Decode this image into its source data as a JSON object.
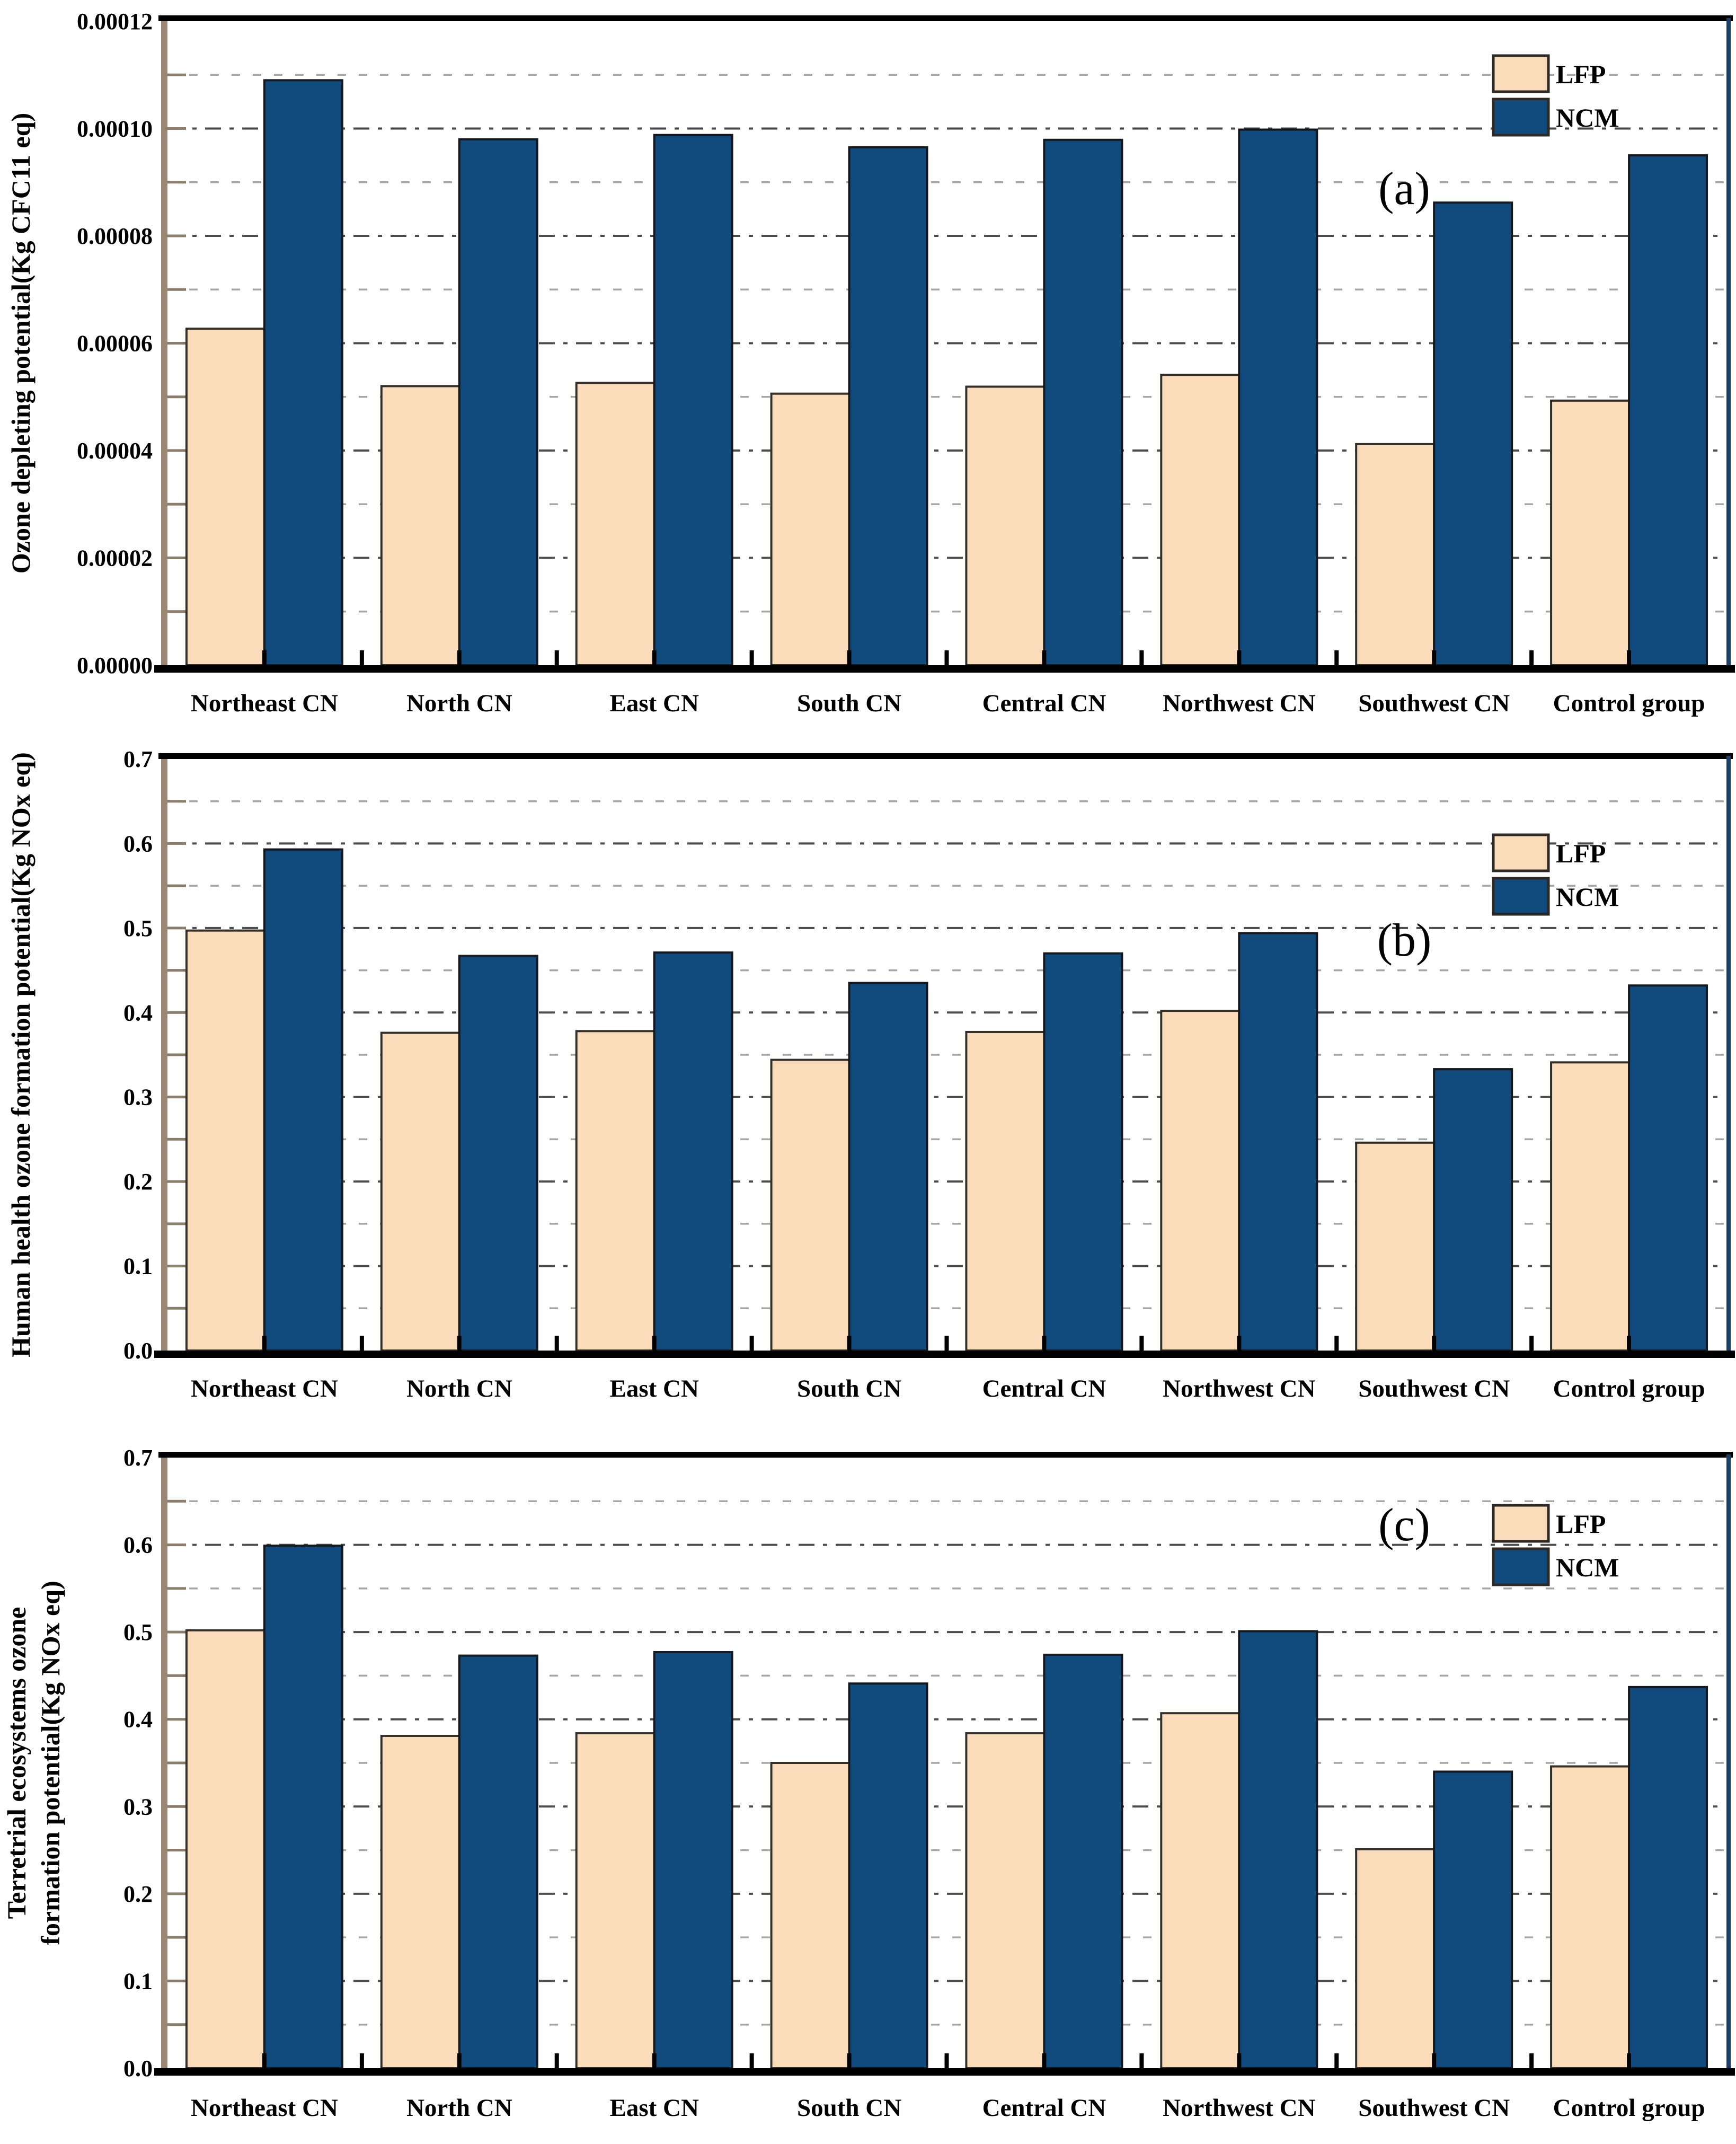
{
  "figure": {
    "background": "#ffffff",
    "description_visible_panels": [
      "(a)",
      "(b)",
      "(c)"
    ]
  },
  "colors": {
    "series": {
      "LFP": {
        "fill": "#FBDCBA",
        "stroke": "#332F2A"
      },
      "NCM": {
        "fill": "#114A7D",
        "stroke": "#15181D"
      }
    },
    "grid_major": "#4C4C4C",
    "grid_minor": "#A6A6A6",
    "spine_left": "#9A8774",
    "spine_right": "#1D3F66",
    "spine_top": "#000000",
    "spine_bottom": "#000000",
    "axis_tick": "#8C7C6A",
    "x_tick": "#000000",
    "text": "#000000"
  },
  "legend": {
    "position": "top-right",
    "items": [
      {
        "label": "LFP",
        "series": "LFP"
      },
      {
        "label": "NCM",
        "series": "NCM"
      }
    ]
  },
  "chart_data": [
    {
      "type": "bar",
      "panel_label": "(a)",
      "title": "",
      "xlabel": "",
      "ylabel_lines": [
        "Ozone depleting potential(Kg CFC11 eq)"
      ],
      "ylim": [
        0,
        0.00012
      ],
      "minor_step": 1e-05,
      "grid": "horizontal, dash-dot at labeled ticks, light dashed at halfway ticks",
      "legend_position": "top-right",
      "yticks": [
        {
          "v": 0.0,
          "label": "0.00000"
        },
        {
          "v": 2e-05,
          "label": "0.00002"
        },
        {
          "v": 4e-05,
          "label": "0.00004"
        },
        {
          "v": 6e-05,
          "label": "0.00006"
        },
        {
          "v": 8e-05,
          "label": "0.00008"
        },
        {
          "v": 0.0001,
          "label": "0.00010"
        },
        {
          "v": 0.00012,
          "label": "0.00012"
        }
      ],
      "categories": [
        "Northeast CN",
        "North CN",
        "East CN",
        "South CN",
        "Central CN",
        "Northwest CN",
        "Southwest CN",
        "Control group"
      ],
      "series": [
        {
          "name": "LFP",
          "values": [
            6.27e-05,
            5.2e-05,
            5.26e-05,
            5.06e-05,
            5.19e-05,
            5.41e-05,
            4.12e-05,
            4.93e-05
          ]
        },
        {
          "name": "NCM",
          "values": [
            0.000109,
            9.8e-05,
            9.88e-05,
            9.65e-05,
            9.79e-05,
            9.98e-05,
            8.62e-05,
            9.5e-05
          ]
        }
      ]
    },
    {
      "type": "bar",
      "panel_label": "(b)",
      "title": "",
      "xlabel": "",
      "ylabel_lines": [
        "Human health ozone formation potential(Kg NOx eq)"
      ],
      "ylim": [
        0,
        0.7
      ],
      "minor_step": 0.05,
      "grid": "horizontal, dash-dot at labeled ticks, light dashed at halfway ticks",
      "legend_position": "top-right",
      "yticks": [
        {
          "v": 0.0,
          "label": "0.0"
        },
        {
          "v": 0.1,
          "label": "0.1"
        },
        {
          "v": 0.2,
          "label": "0.2"
        },
        {
          "v": 0.3,
          "label": "0.3"
        },
        {
          "v": 0.4,
          "label": "0.4"
        },
        {
          "v": 0.5,
          "label": "0.5"
        },
        {
          "v": 0.6,
          "label": "0.6"
        },
        {
          "v": 0.7,
          "label": "0.7"
        }
      ],
      "categories": [
        "Northeast CN",
        "North CN",
        "East CN",
        "South CN",
        "Central CN",
        "Northwest CN",
        "Southwest CN",
        "Control group"
      ],
      "series": [
        {
          "name": "LFP",
          "values": [
            0.497,
            0.376,
            0.378,
            0.344,
            0.377,
            0.402,
            0.246,
            0.341
          ]
        },
        {
          "name": "NCM",
          "values": [
            0.593,
            0.467,
            0.471,
            0.435,
            0.47,
            0.494,
            0.333,
            0.432
          ]
        }
      ]
    },
    {
      "type": "bar",
      "panel_label": "(c)",
      "title": "",
      "xlabel": "",
      "ylabel_lines": [
        "Terretrial ecosystems ozone",
        "formation potential(Kg NOx eq)"
      ],
      "ylim": [
        0,
        0.7
      ],
      "minor_step": 0.05,
      "grid": "horizontal, dash-dot at labeled ticks, light dashed at halfway ticks",
      "legend_position": "top-right",
      "yticks": [
        {
          "v": 0.0,
          "label": "0.0"
        },
        {
          "v": 0.1,
          "label": "0.1"
        },
        {
          "v": 0.2,
          "label": "0.2"
        },
        {
          "v": 0.3,
          "label": "0.3"
        },
        {
          "v": 0.4,
          "label": "0.4"
        },
        {
          "v": 0.5,
          "label": "0.5"
        },
        {
          "v": 0.6,
          "label": "0.6"
        },
        {
          "v": 0.7,
          "label": "0.7"
        }
      ],
      "categories": [
        "Northeast CN",
        "North CN",
        "East CN",
        "South CN",
        "Central CN",
        "Northwest CN",
        "Southwest CN",
        "Control group"
      ],
      "series": [
        {
          "name": "LFP",
          "values": [
            0.502,
            0.381,
            0.384,
            0.35,
            0.384,
            0.407,
            0.251,
            0.346
          ]
        },
        {
          "name": "NCM",
          "values": [
            0.599,
            0.473,
            0.477,
            0.441,
            0.474,
            0.501,
            0.34,
            0.437
          ]
        }
      ]
    }
  ]
}
